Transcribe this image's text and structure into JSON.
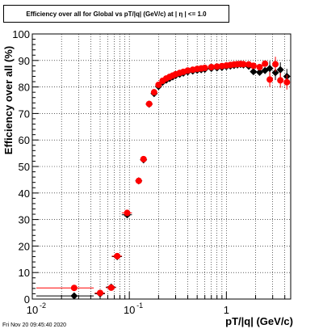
{
  "chart_data": {
    "type": "scatter",
    "title": "Efficiency over all for Global vs pT/|q| (GeV/c) at |  η | <= 1.0",
    "xlabel": "pT/|q| (GeV/c)",
    "ylabel": "Efficiency over all (%)",
    "xscale": "log",
    "xlim": [
      0.01,
      4.6
    ],
    "ylim": [
      0,
      100
    ],
    "grid": true,
    "yticks": [
      0,
      10,
      20,
      30,
      40,
      50,
      60,
      70,
      80,
      90,
      100
    ],
    "xticks": [
      {
        "value": 0.01,
        "label": "10"
      },
      {
        "value": 0.1,
        "label": "10"
      },
      {
        "value": 1,
        "label": "1"
      }
    ],
    "series": [
      {
        "color": "#000000",
        "marker": "diamond",
        "x": [
          0.027,
          0.05,
          0.065,
          0.075,
          0.095,
          0.125,
          0.14,
          0.16,
          0.18,
          0.2,
          0.22,
          0.24,
          0.26,
          0.28,
          0.3,
          0.33,
          0.36,
          0.4,
          0.45,
          0.5,
          0.55,
          0.6,
          0.7,
          0.8,
          0.9,
          1.0,
          1.1,
          1.2,
          1.3,
          1.4,
          1.5,
          1.7,
          1.9,
          2.2,
          2.5,
          2.8,
          3.2,
          3.6,
          4.2
        ],
        "y": [
          1.2,
          2.0,
          4.5,
          16.0,
          31.8,
          44.6,
          52.5,
          73.5,
          77.5,
          80.2,
          81.8,
          82.6,
          83.2,
          83.8,
          84.3,
          84.8,
          85.2,
          85.7,
          86.0,
          86.3,
          86.5,
          86.7,
          87.0,
          87.2,
          87.4,
          87.7,
          87.9,
          88.1,
          88.3,
          88.5,
          88.3,
          87.8,
          85.8,
          85.5,
          86.2,
          87.0,
          85.4,
          86.5,
          84.0
        ]
      },
      {
        "color": "#ff0000",
        "marker": "circle",
        "x": [
          0.027,
          0.05,
          0.065,
          0.075,
          0.095,
          0.125,
          0.14,
          0.16,
          0.18,
          0.2,
          0.22,
          0.24,
          0.26,
          0.28,
          0.3,
          0.33,
          0.36,
          0.4,
          0.45,
          0.5,
          0.55,
          0.6,
          0.7,
          0.8,
          0.9,
          1.0,
          1.1,
          1.2,
          1.3,
          1.4,
          1.5,
          1.7,
          1.9,
          2.2,
          2.5,
          2.8,
          3.2,
          3.6,
          4.2
        ],
        "y": [
          4.2,
          2.3,
          4.3,
          16.2,
          32.5,
          44.6,
          52.8,
          73.6,
          78.0,
          80.8,
          82.3,
          83.2,
          83.8,
          84.3,
          84.8,
          85.3,
          85.7,
          86.2,
          86.5,
          86.8,
          87.0,
          87.2,
          87.5,
          87.7,
          87.9,
          88.1,
          88.3,
          88.5,
          88.6,
          88.7,
          88.6,
          88.5,
          88.0,
          87.5,
          88.8,
          82.8,
          88.6,
          82.5,
          81.8
        ]
      }
    ]
  },
  "footer": "Fri Nov 20 09:45:40 2020"
}
